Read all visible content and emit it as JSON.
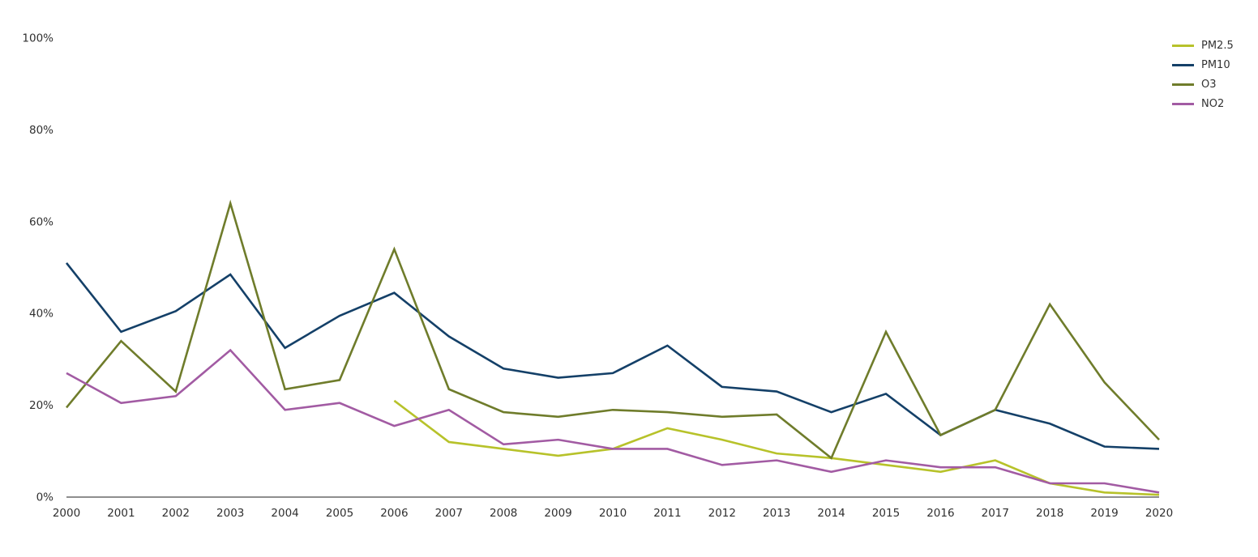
{
  "colors": {
    "background": "#ffffff",
    "axis_line": "#4a4a4a",
    "tick_text": "#303030",
    "legend_text": "#333333"
  },
  "chart_data": {
    "type": "line",
    "title": "",
    "xlabel": "",
    "ylabel": "",
    "grid": false,
    "legend_position": "top-right",
    "x": [
      2000,
      2001,
      2002,
      2003,
      2004,
      2005,
      2006,
      2007,
      2008,
      2009,
      2010,
      2011,
      2012,
      2013,
      2014,
      2015,
      2016,
      2017,
      2018,
      2019,
      2020
    ],
    "x_labels": [
      "2000",
      "2001",
      "2002",
      "2003",
      "2004",
      "2005",
      "2006",
      "2007",
      "2008",
      "2009",
      "2010",
      "2011",
      "2012",
      "2013",
      "2014",
      "2015",
      "2016",
      "2017",
      "2018",
      "2019",
      "2020"
    ],
    "ylim": [
      0,
      100
    ],
    "y_tick_values": [
      0,
      20,
      40,
      60,
      80,
      100
    ],
    "y_tick_labels": [
      "0%",
      "20%",
      "40%",
      "60%",
      "80%",
      "100%"
    ],
    "series": [
      {
        "name": "PM2.5",
        "color": "#b7c22a",
        "values": [
          null,
          null,
          null,
          null,
          null,
          null,
          21,
          12,
          10.5,
          9,
          10.5,
          15,
          12.5,
          9.5,
          8.5,
          7,
          5.5,
          8,
          3,
          1,
          0.5
        ]
      },
      {
        "name": "PM10",
        "color": "#144068",
        "values": [
          51,
          36,
          40.5,
          48.5,
          32.5,
          39.5,
          44.5,
          35,
          28,
          26,
          27,
          33,
          24,
          23,
          18.5,
          22.5,
          13.5,
          19,
          16,
          11,
          10.5
        ]
      },
      {
        "name": "O3",
        "color": "#6f7c2b",
        "values": [
          19.5,
          34,
          23,
          64,
          23.5,
          25.5,
          54,
          23.5,
          18.5,
          17.5,
          19,
          18.5,
          17.5,
          18,
          8.5,
          36,
          13.5,
          19,
          42,
          25,
          12.5
        ]
      },
      {
        "name": "NO2",
        "color": "#a25ba3",
        "values": [
          27,
          20.5,
          22,
          32,
          19,
          20.5,
          15.5,
          19,
          11.5,
          12.5,
          10.5,
          10.5,
          7,
          8,
          5.5,
          8,
          6.5,
          6.5,
          3,
          3,
          1
        ]
      }
    ]
  }
}
